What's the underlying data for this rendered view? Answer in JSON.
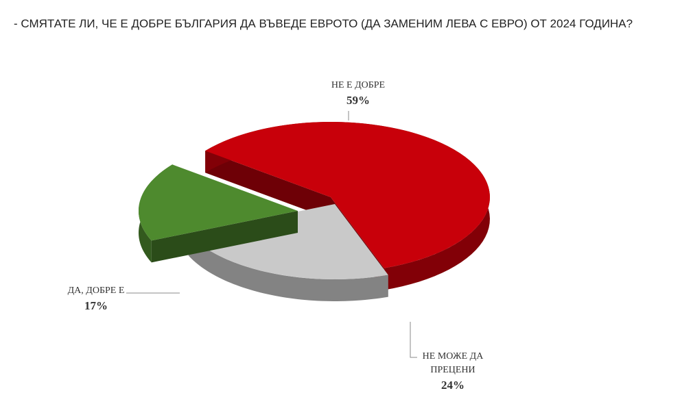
{
  "question": "- СМЯТАТЕ ЛИ, ЧЕ Е ДОБРЕ БЪЛГАРИЯ ДА ВЪВЕДЕ ЕВРОТО (ДА ЗАМЕНИМ ЛЕВА С ЕВРО) ОТ 2024 ГОДИНА?",
  "chart_data": {
    "type": "pie",
    "title": "",
    "slices": [
      {
        "label": "НЕ Е ДОБРЕ",
        "label_lines": [
          "НЕ Е ДОБРЕ"
        ],
        "value": 59,
        "value_label": "59%",
        "color": "#c8000a"
      },
      {
        "label": "НЕ МОЖЕ ДА ПРЕЦЕНИ",
        "label_lines": [
          "НЕ МОЖЕ ДА",
          "ПРЕЦЕНИ"
        ],
        "value": 24,
        "value_label": "24%",
        "color": "#c9c9c9"
      },
      {
        "label": "ДА, ДОБРЕ Е",
        "label_lines": [
          "ДА, ДОБРЕ Е"
        ],
        "value": 17,
        "value_label": "17%",
        "color": "#4e8a2e"
      }
    ],
    "legend": "none",
    "style": "3d-exploded"
  }
}
